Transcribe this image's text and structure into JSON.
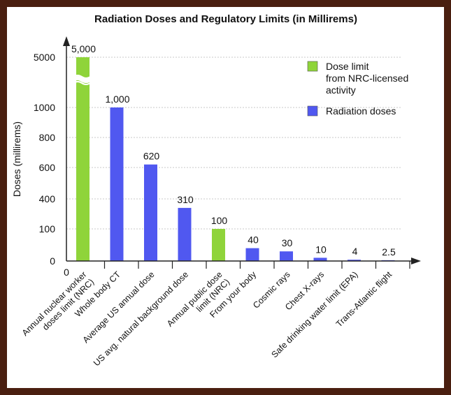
{
  "chart_data": {
    "type": "bar",
    "title": "Radiation Doses and Regulatory Limits (in Millirems)",
    "ylabel": "Doses (millirems)",
    "xlabel": "",
    "x_origin_label": "0",
    "y_ticks": [
      {
        "label": "0",
        "value": 0
      },
      {
        "label": "100",
        "value": 100
      },
      {
        "label": "400",
        "value": 400
      },
      {
        "label": "600",
        "value": 600
      },
      {
        "label": "800",
        "value": 800
      },
      {
        "label": "1000",
        "value": 1000
      },
      {
        "label": "5000",
        "value": 5000
      }
    ],
    "y_scale": "nonlinear (broken axis)",
    "grid": true,
    "legend_position": "top-right",
    "categories": [
      [
        "Annual nuclear worker",
        "doses limit (NRC)"
      ],
      [
        "Whole body CT"
      ],
      [
        "Average US annual dose"
      ],
      [
        "US avg. natural background dose"
      ],
      [
        "Annual public dose",
        "limit (NRC)"
      ],
      [
        "From your body"
      ],
      [
        "Cosmic rays"
      ],
      [
        "Chest X-rays"
      ],
      [
        "Safe drinking water limit (EPA)"
      ],
      [
        "Trans-Atlantic flight"
      ]
    ],
    "values": [
      5000,
      1000,
      620,
      310,
      100,
      40,
      30,
      10,
      4,
      2.5
    ],
    "value_labels": [
      "5,000",
      "1,000",
      "620",
      "310",
      "100",
      "40",
      "30",
      "10",
      "4",
      "2.5"
    ],
    "bar_series": [
      0,
      1,
      1,
      1,
      0,
      1,
      1,
      1,
      1,
      1
    ],
    "series": [
      {
        "name": "Dose limit from NRC-licensed activity",
        "name_lines": [
          "Dose limit",
          "from NRC-licensed",
          "activity"
        ],
        "color": "#8fd43a"
      },
      {
        "name": "Radiation doses",
        "name_lines": [
          "Radiation doses"
        ],
        "color": "#5058f0"
      }
    ]
  }
}
